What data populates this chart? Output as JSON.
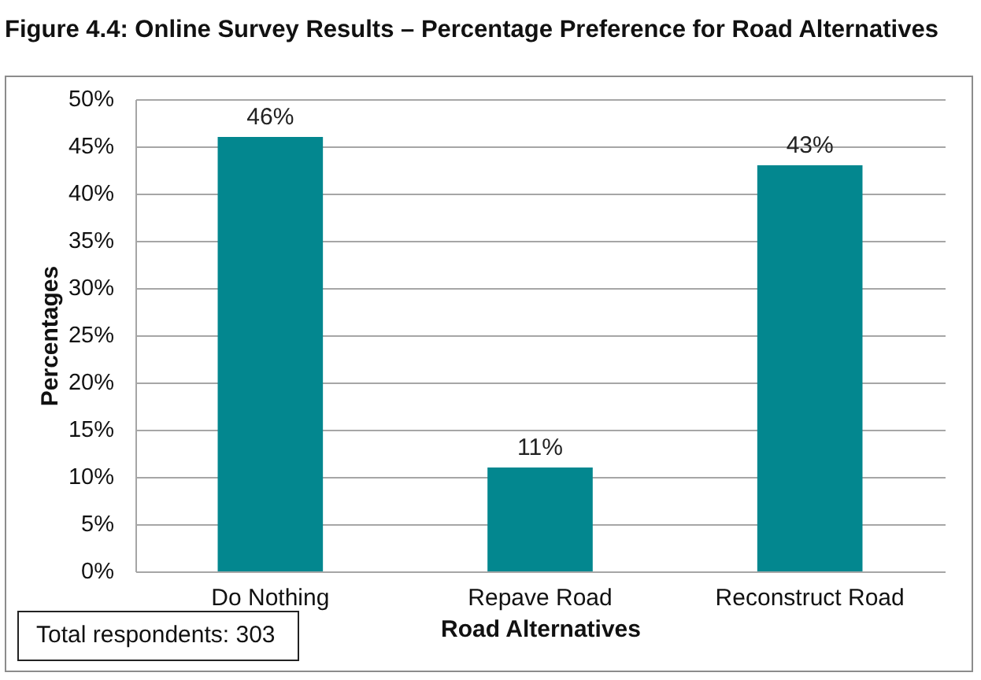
{
  "chart_data": {
    "type": "bar",
    "title": "Figure 4.4:  Online Survey Results – Percentage Preference for Road Alternatives",
    "xlabel": "Road Alternatives",
    "ylabel": "Percentages",
    "categories": [
      "Do Nothing",
      "Repave Road",
      "Reconstruct Road"
    ],
    "values": [
      46,
      11,
      43
    ],
    "value_labels": [
      "46%",
      "11%",
      "43%"
    ],
    "color": "#03878f",
    "ylim": [
      0,
      50
    ],
    "yticks": [
      {
        "value": 0,
        "label": "0%"
      },
      {
        "value": 5,
        "label": "5%"
      },
      {
        "value": 10,
        "label": "10%"
      },
      {
        "value": 15,
        "label": "15%"
      },
      {
        "value": 20,
        "label": "20%"
      },
      {
        "value": 25,
        "label": "25%"
      },
      {
        "value": 30,
        "label": "30%"
      },
      {
        "value": 35,
        "label": "35%"
      },
      {
        "value": 40,
        "label": "40%"
      },
      {
        "value": 45,
        "label": "45%"
      },
      {
        "value": 50,
        "label": "50%"
      }
    ],
    "grid": "y",
    "annotations": [
      "Total respondents: 303"
    ]
  }
}
